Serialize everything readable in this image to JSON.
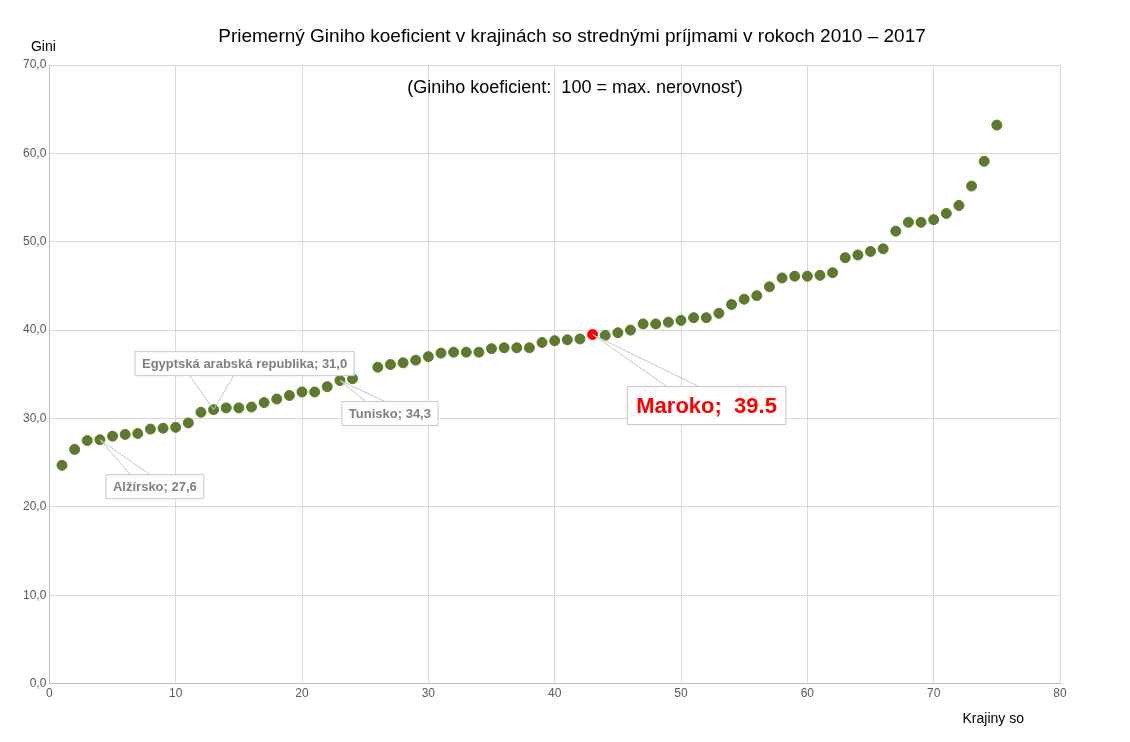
{
  "chart_data": {
    "type": "scatter",
    "title": "Priemerný Giniho koeficient v krajinách so strednými príjmami v rokoch 2010 – 2017",
    "subtitle": "(Giniho koeficient:  100 = max. nerovnosť)",
    "xlabel": "Krajiny so",
    "ylabel": "Gini",
    "series": [
      {
        "color": "#5e7a2e",
        "x": [
          1,
          2,
          3,
          4,
          5,
          6,
          7,
          8,
          9,
          10,
          11,
          12,
          13,
          14,
          15,
          16,
          17,
          18,
          19,
          20,
          21,
          22,
          23,
          24,
          26,
          27,
          28,
          29,
          30,
          31,
          32,
          33,
          34,
          35,
          36,
          37,
          38,
          39,
          40,
          41,
          42,
          43,
          44,
          45,
          46,
          47,
          48,
          49,
          50,
          51,
          52,
          53,
          54,
          55,
          56,
          57,
          58,
          59,
          60,
          61,
          62,
          63,
          64,
          65,
          66,
          67,
          68,
          69,
          70,
          71,
          72,
          73,
          74,
          75
        ],
        "values": [
          24.7,
          26.5,
          27.5,
          27.6,
          28.0,
          28.2,
          28.3,
          28.8,
          28.9,
          29.0,
          29.5,
          30.7,
          31.0,
          31.2,
          31.2,
          31.3,
          31.8,
          32.2,
          32.6,
          33.0,
          33.0,
          33.6,
          34.3,
          34.5,
          35.8,
          36.1,
          36.3,
          36.6,
          37.0,
          37.4,
          37.5,
          37.5,
          37.5,
          37.9,
          38.0,
          38.0,
          38.0,
          38.6,
          38.8,
          38.9,
          39.0,
          39.5,
          39.4,
          39.7,
          40.0,
          40.7,
          40.7,
          40.9,
          41.1,
          41.4,
          41.4,
          41.9,
          42.9,
          43.5,
          43.9,
          44.9,
          45.9,
          46.1,
          46.1,
          46.2,
          46.5,
          48.2,
          48.5,
          48.9,
          49.2,
          51.2,
          52.2,
          52.2,
          52.5,
          53.2,
          54.1,
          56.3,
          59.1,
          63.2
        ],
        "colors": [
          "#5e7a2e",
          "#5e7a2e",
          "#5e7a2e",
          "#5e7a2e",
          "#5e7a2e",
          "#5e7a2e",
          "#5e7a2e",
          "#5e7a2e",
          "#5e7a2e",
          "#5e7a2e",
          "#5e7a2e",
          "#5e7a2e",
          "#5e7a2e",
          "#5e7a2e",
          "#5e7a2e",
          "#5e7a2e",
          "#5e7a2e",
          "#5e7a2e",
          "#5e7a2e",
          "#5e7a2e",
          "#5e7a2e",
          "#5e7a2e",
          "#5e7a2e",
          "#5e7a2e",
          "#5e7a2e",
          "#5e7a2e",
          "#5e7a2e",
          "#5e7a2e",
          "#5e7a2e",
          "#5e7a2e",
          "#5e7a2e",
          "#5e7a2e",
          "#5e7a2e",
          "#5e7a2e",
          "#5e7a2e",
          "#5e7a2e",
          "#5e7a2e",
          "#5e7a2e",
          "#5e7a2e",
          "#5e7a2e",
          "#5e7a2e",
          "#ff0000",
          "#5e7a2e",
          "#5e7a2e",
          "#5e7a2e",
          "#5e7a2e",
          "#5e7a2e",
          "#5e7a2e",
          "#5e7a2e",
          "#5e7a2e",
          "#5e7a2e",
          "#5e7a2e",
          "#5e7a2e",
          "#5e7a2e",
          "#5e7a2e",
          "#5e7a2e",
          "#5e7a2e",
          "#5e7a2e",
          "#5e7a2e",
          "#5e7a2e",
          "#5e7a2e",
          "#5e7a2e",
          "#5e7a2e",
          "#5e7a2e",
          "#5e7a2e",
          "#5e7a2e",
          "#5e7a2e",
          "#5e7a2e",
          "#5e7a2e",
          "#5e7a2e",
          "#5e7a2e",
          "#5e7a2e",
          "#5e7a2e",
          "#5e7a2e"
        ]
      }
    ],
    "xlim": [
      0,
      80
    ],
    "xticks": [
      0,
      10,
      20,
      30,
      40,
      50,
      60,
      70,
      80
    ],
    "ylim": [
      0,
      70
    ],
    "yticks": [
      {
        "value": 0,
        "label": "0,0"
      },
      {
        "value": 10,
        "label": "10,0"
      },
      {
        "value": 20,
        "label": "20,0"
      },
      {
        "value": 30,
        "label": "30,0"
      },
      {
        "value": 40,
        "label": "40,0"
      },
      {
        "value": 50,
        "label": "50,0"
      },
      {
        "value": 60,
        "label": "60,0"
      },
      {
        "value": 70,
        "label": "70,0"
      }
    ],
    "grid": true,
    "legend": false,
    "marker": "circle",
    "annotations": [
      {
        "text": "Alžírsko; 27,6",
        "x": 4,
        "y": 27.6
      },
      {
        "text": "Egyptská arabská republika; 31,0",
        "x": 13,
        "y": 31.0
      },
      {
        "text": "Tunisko; 34,3",
        "x": 23,
        "y": 34.3
      },
      {
        "text": "Maroko;  39.5",
        "x": 43,
        "y": 39.5
      }
    ]
  }
}
